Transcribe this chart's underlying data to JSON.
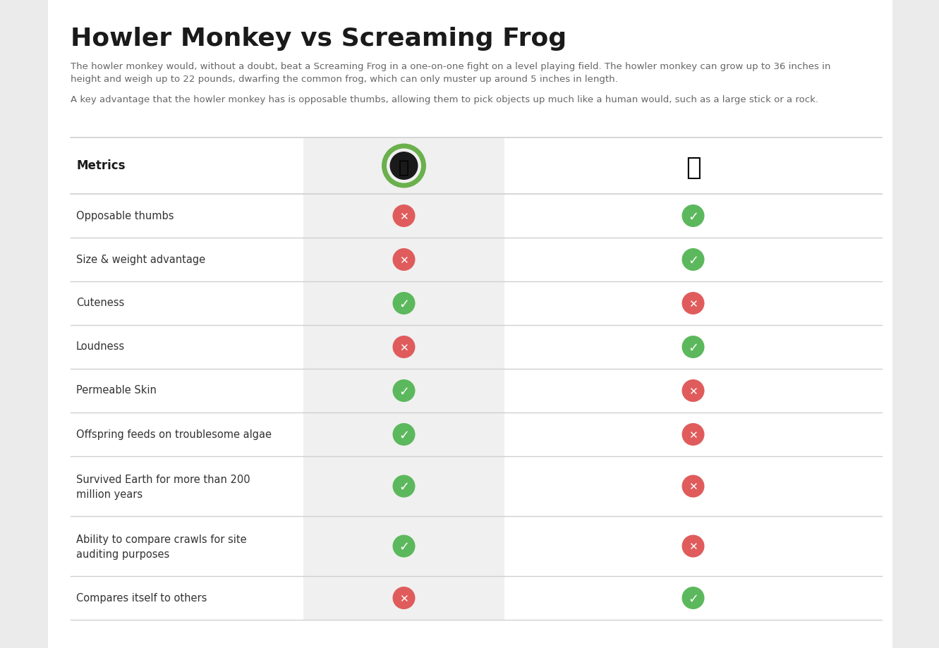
{
  "title": "Howler Monkey vs Screaming Frog",
  "paragraph1_line1": "The howler monkey would, without a doubt, beat a Screaming Frog in a one-on-one fight on a level playing field. The howler monkey can grow up to 36 inches in",
  "paragraph1_line2": "height and weigh up to 22 pounds, dwarfing the common frog, which can only muster up around 5 inches in length.",
  "paragraph2": "A key advantage that the howler monkey has is opposable thumbs, allowing them to pick objects up much like a human would, such as a large stick or a rock.",
  "metrics_label": "Metrics",
  "rows": [
    {
      "label": "Opposable thumbs",
      "frog": false,
      "monkey": true,
      "multiline": false
    },
    {
      "label": "Size & weight advantage",
      "frog": false,
      "monkey": true,
      "multiline": false
    },
    {
      "label": "Cuteness",
      "frog": true,
      "monkey": false,
      "multiline": false
    },
    {
      "label": "Loudness",
      "frog": false,
      "monkey": true,
      "multiline": false
    },
    {
      "label": "Permeable Skin",
      "frog": true,
      "monkey": false,
      "multiline": false
    },
    {
      "label": "Offspring feeds on troublesome algae",
      "frog": true,
      "monkey": false,
      "multiline": false
    },
    {
      "label": "Survived Earth for more than 200\nmillion years",
      "frog": true,
      "monkey": false,
      "multiline": true
    },
    {
      "label": "Ability to compare crawls for site\nauditing purposes",
      "frog": true,
      "monkey": false,
      "multiline": true
    },
    {
      "label": "Compares itself to others",
      "frog": false,
      "monkey": true,
      "multiline": false
    }
  ],
  "outer_bg": "#ebebeb",
  "page_bg": "#ffffff",
  "frog_col_bg": "#f0f0f0",
  "green_color": "#5cb85c",
  "red_color": "#e05c5c",
  "text_color": "#333333",
  "body_text_color": "#666666",
  "line_color": "#d0d0d0",
  "title_color": "#1a1a1a",
  "frog_green": "#6ab04c",
  "monkey_dark": "#2c2c2c"
}
